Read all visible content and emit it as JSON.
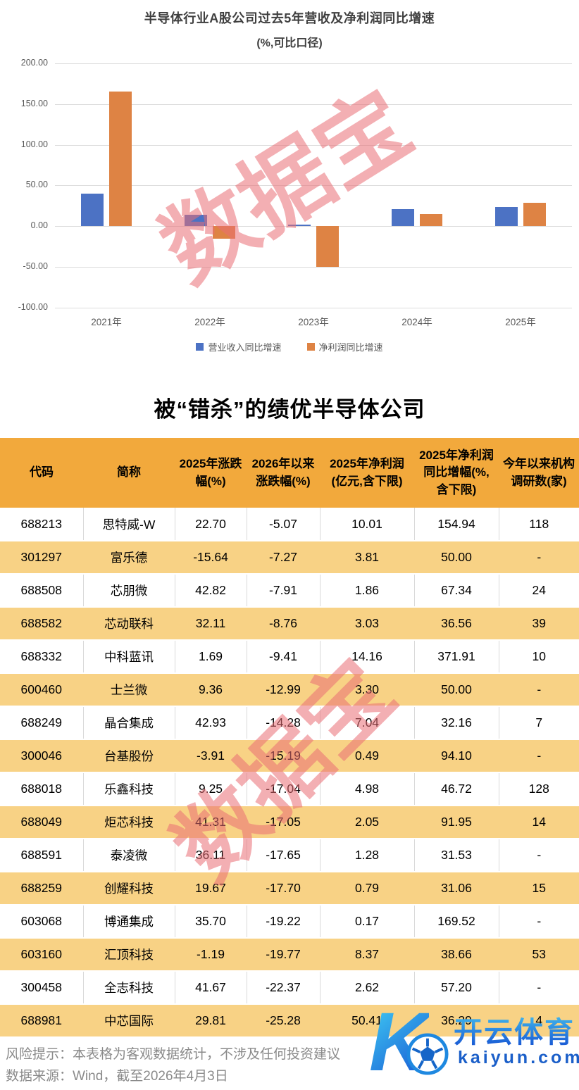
{
  "chart": {
    "title": "半导体行业A股公司过去5年营收及净利润同比增速",
    "subtitle": "(%,可比口径)",
    "legend": [
      {
        "label": "营业收入同比增速",
        "color": "#4C72C4"
      },
      {
        "label": "净利润同比增速",
        "color": "#DE8344"
      }
    ]
  },
  "chart_data": {
    "type": "bar",
    "categories": [
      "2021年",
      "2022年",
      "2023年",
      "2024年",
      "2025年"
    ],
    "series": [
      {
        "name": "营业收入同比增速",
        "color": "#4C72C4",
        "values": [
          40,
          14,
          1.5,
          21,
          23
        ]
      },
      {
        "name": "净利润同比增速",
        "color": "#DE8344",
        "values": [
          165,
          -16,
          -50,
          15,
          29
        ]
      }
    ],
    "title": "半导体行业A股公司过去5年营收及净利润同比增速",
    "subtitle": "(%,可比口径)",
    "xlabel": "",
    "ylabel": "",
    "ylim": [
      -100,
      200
    ],
    "yticks": [
      200,
      150,
      100,
      50,
      0,
      -50,
      -100
    ],
    "ytick_labels": [
      "200.00",
      "150.00",
      "100.00",
      "50.00",
      "0.00",
      "-50.00",
      "-100.00"
    ],
    "grid": true,
    "legend_position": "bottom"
  },
  "watermark": {
    "text": "数据宝"
  },
  "table": {
    "title": "被“错杀”的绩优半导体公司",
    "columns": [
      "代码",
      "简称",
      "2025年涨跌幅(%)",
      "2026年以来涨跌幅(%)",
      "2025年净利润(亿元,含下限)",
      "2025年净利润同比增幅(%,含下限)",
      "今年以来机构调研数(家)"
    ],
    "rows": [
      [
        "688213",
        "思特威-W",
        "22.70",
        "-5.07",
        "10.01",
        "154.94",
        "118"
      ],
      [
        "301297",
        "富乐德",
        "-15.64",
        "-7.27",
        "3.81",
        "50.00",
        "-"
      ],
      [
        "688508",
        "芯朋微",
        "42.82",
        "-7.91",
        "1.86",
        "67.34",
        "24"
      ],
      [
        "688582",
        "芯动联科",
        "32.11",
        "-8.76",
        "3.03",
        "36.56",
        "39"
      ],
      [
        "688332",
        "中科蓝讯",
        "1.69",
        "-9.41",
        "14.16",
        "371.91",
        "10"
      ],
      [
        "600460",
        "士兰微",
        "9.36",
        "-12.99",
        "3.30",
        "50.00",
        "-"
      ],
      [
        "688249",
        "晶合集成",
        "42.93",
        "-14.28",
        "7.04",
        "32.16",
        "7"
      ],
      [
        "300046",
        "台基股份",
        "-3.91",
        "-15.19",
        "0.49",
        "94.10",
        "-"
      ],
      [
        "688018",
        "乐鑫科技",
        "9.25",
        "-17.04",
        "4.98",
        "46.72",
        "128"
      ],
      [
        "688049",
        "炬芯科技",
        "41.31",
        "-17.05",
        "2.05",
        "91.95",
        "14"
      ],
      [
        "688591",
        "泰凌微",
        "36.11",
        "-17.65",
        "1.28",
        "31.53",
        "-"
      ],
      [
        "688259",
        "创耀科技",
        "19.67",
        "-17.70",
        "0.79",
        "31.06",
        "15"
      ],
      [
        "603068",
        "博通集成",
        "35.70",
        "-19.22",
        "0.17",
        "169.52",
        "-"
      ],
      [
        "603160",
        "汇顶科技",
        "-1.19",
        "-19.77",
        "8.37",
        "38.66",
        "53"
      ],
      [
        "300458",
        "全志科技",
        "41.67",
        "-22.37",
        "2.62",
        "57.20",
        "-"
      ],
      [
        "688981",
        "中芯国际",
        "29.81",
        "-25.28",
        "50.41",
        "36.29",
        "4"
      ]
    ],
    "colors": {
      "header_bg": "#F2A93C",
      "alt_row_bg": "#F8D285"
    }
  },
  "footer": {
    "risk_note": "风险提示：本表格为客观数据统计，不涉及任何投资建议",
    "data_source": "数据来源：Wind，截至2026年4月3日"
  },
  "logo": {
    "letter": "K",
    "brand": "开云体育",
    "domain": "kaiyun.com",
    "color": "#1b5fc9"
  }
}
